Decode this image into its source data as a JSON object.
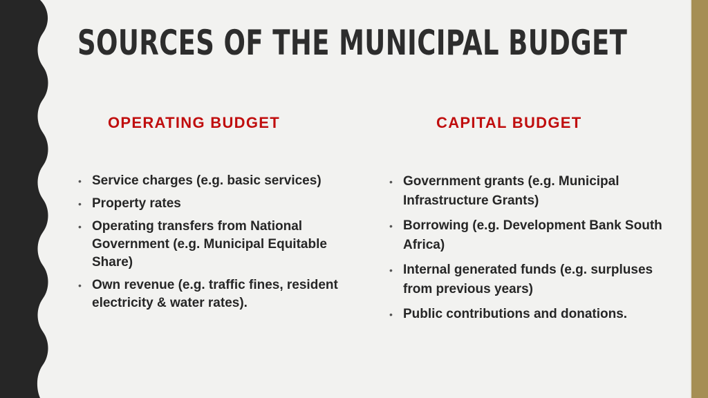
{
  "slide": {
    "title": "SOURCES OF THE MUNICIPAL BUDGET",
    "colors": {
      "background": "#f2f2f0",
      "title": "#2d2d2d",
      "heading": "#c00e0e",
      "left_band": "#262626",
      "right_band": "#a58e54"
    },
    "columns": [
      {
        "heading": "OPERATING BUDGET",
        "items": [
          "Service charges (e.g. basic services)",
          "Property rates",
          "Operating transfers from National Government (e.g. Municipal Equitable Share)",
          "Own revenue (e.g. traffic fines, resident electricity & water rates)."
        ]
      },
      {
        "heading": "CAPITAL BUDGET",
        "items": [
          "Government grants (e.g. Municipal Infrastructure Grants)",
          "Borrowing (e.g. Development Bank South Africa)",
          "Internal generated funds (e.g. surpluses from previous years)",
          "Public contributions and donations."
        ]
      }
    ]
  }
}
